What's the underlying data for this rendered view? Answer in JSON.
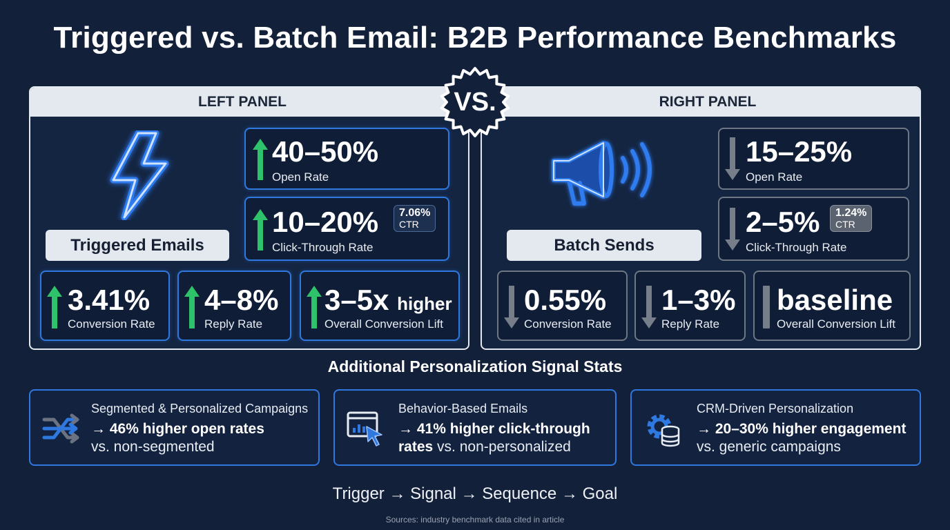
{
  "title": "Triggered vs. Batch Email: B2B Performance Benchmarks",
  "vs_label": "VS.",
  "left_panel": {
    "header": "LEFT PANEL",
    "label": "Triggered Emails",
    "icon": "lightning-bolt-icon",
    "stats": {
      "open_rate": {
        "value": "40–50%",
        "label": "Open Rate",
        "trend": "up"
      },
      "ctr": {
        "value": "10–20%",
        "label": "Click-Through Rate",
        "badge_value": "7.06%",
        "badge_sub": "CTR",
        "trend": "up"
      },
      "conversion": {
        "value": "3.41%",
        "label": "Conversion Rate",
        "trend": "up"
      },
      "reply": {
        "value": "4–8%",
        "label": "Reply Rate",
        "trend": "up"
      },
      "lift": {
        "value": "3–5x",
        "suffix": "higher",
        "label": "Overall Conversion Lift",
        "trend": "up"
      }
    }
  },
  "right_panel": {
    "header": "RIGHT PANEL",
    "label": "Batch Sends",
    "icon": "megaphone-icon",
    "stats": {
      "open_rate": {
        "value": "15–25%",
        "label": "Open Rate",
        "trend": "down"
      },
      "ctr": {
        "value": "2–5%",
        "label": "Click-Through Rate",
        "badge_value": "1.24%",
        "badge_sub": "CTR",
        "trend": "down"
      },
      "conversion": {
        "value": "0.55%",
        "label": "Conversion Rate",
        "trend": "down"
      },
      "reply": {
        "value": "1–3%",
        "label": "Reply Rate",
        "trend": "down"
      },
      "lift": {
        "value": "baseline",
        "label": "Overall Conversion Lift",
        "trend": "flat"
      }
    }
  },
  "signals": {
    "title": "Additional Personalization Signal Stats",
    "cards": [
      {
        "icon": "shuffle-arrows-icon",
        "title": "Segmented & Personalized Campaigns",
        "line1": "→ 46% higher open rates",
        "line2": "vs. non-segmented"
      },
      {
        "icon": "browser-cursor-icon",
        "title": "Behavior-Based Emails",
        "line1": "→ 41% higher click-through",
        "line2_bold": "rates",
        "line2": " vs. non-personalized"
      },
      {
        "icon": "gear-database-icon",
        "title": "CRM-Driven Personalization",
        "line1": "→ 20–30% higher engagement",
        "line2": "vs. generic campaigns"
      }
    ]
  },
  "flow": "Trigger → Signal → Sequence → Goal",
  "sources": "Sources: industry benchmark data cited in article",
  "colors": {
    "background": "#13203a",
    "accent_blue": "#2f78e0",
    "up_green": "#2ec26a",
    "down_gray": "#6f7784"
  }
}
